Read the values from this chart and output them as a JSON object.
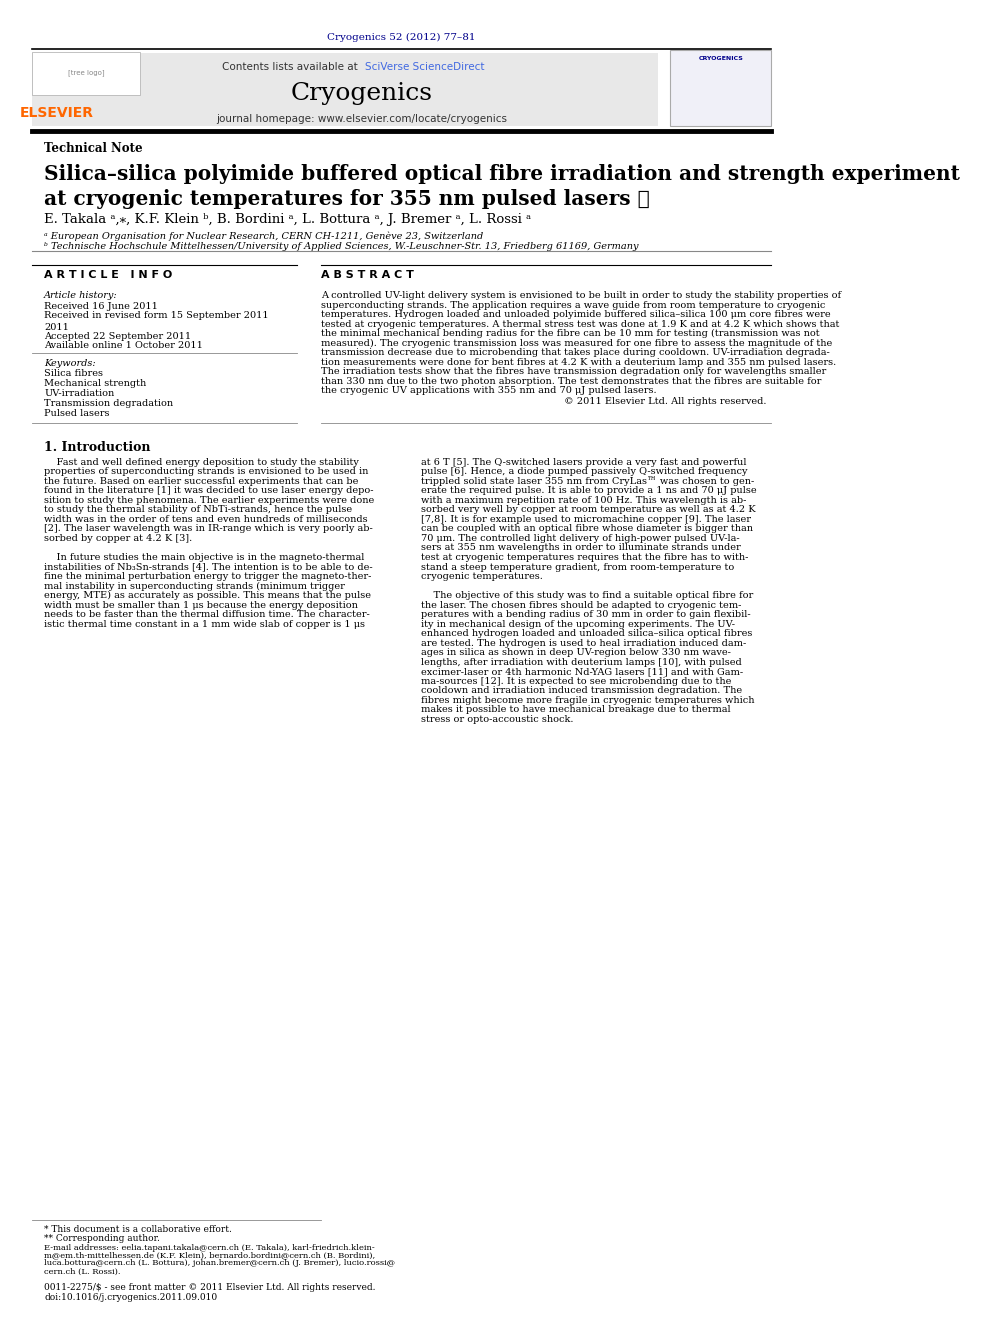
{
  "page_width": 9.92,
  "page_height": 13.23,
  "bg_color": "#ffffff",
  "journal_ref": "Cryogenics 52 (2012) 77–81",
  "journal_ref_color": "#00008B",
  "header_bg": "#e8e8e8",
  "contents_text": "Contents lists available at ",
  "sciverse_text": "SciVerse ScienceDirect",
  "sciverse_color": "#4169e1",
  "journal_name": "Cryogenics",
  "journal_homepage": "journal homepage: www.elsevier.com/locate/cryogenics",
  "article_type": "Technical Note",
  "paper_title_line1": "Silica–silica polyimide buffered optical fibre irradiation and strength experiment",
  "paper_title_line2": "at cryogenic temperatures for 355 nm pulsed lasers ★",
  "authors_full": "E. Takala ᵃ,⁎, K.F. Klein ᵇ, B. Bordini ᵃ, L. Bottura ᵃ, J. Bremer ᵃ, L. Rossi ᵃ",
  "affil_a": "ᵃ European Organisation for Nuclear Research, CERN CH-1211, Genève 23, Switzerland",
  "affil_b": "ᵇ Technische Hochschule Mittelhessen/University of Applied Sciences, W.-Leuschner-Str. 13, Friedberg 61169, Germany",
  "article_info_header": "A R T I C L E   I N F O",
  "abstract_header": "A B S T R A C T",
  "article_history_label": "Article history:",
  "received": "Received 16 June 2011",
  "revised": "Received in revised form 15 September 2011",
  "revised2": "2011",
  "accepted": "Accepted 22 September 2011",
  "available": "Available online 1 October 2011",
  "keywords_label": "Keywords:",
  "keywords": [
    "Silica fibres",
    "Mechanical strength",
    "UV-irradiation",
    "Transmission degradation",
    "Pulsed lasers"
  ],
  "copyright": "© 2011 Elsevier Ltd. All rights reserved.",
  "section1_title": "1. Introduction",
  "issn_line": "0011-2275/$ - see front matter © 2011 Elsevier Ltd. All rights reserved.",
  "doi_line": "doi:10.1016/j.cryogenics.2011.09.010",
  "elsevier_orange": "#FF6600",
  "link_blue": "#4169e1",
  "abstract_lines": [
    "A controlled UV-light delivery system is envisioned to be built in order to study the stability properties of",
    "superconducting strands. The application requires a wave guide from room temperature to cryogenic",
    "temperatures. Hydrogen loaded and unloaded polyimide buffered silica–silica 100 μm core fibres were",
    "tested at cryogenic temperatures. A thermal stress test was done at 1.9 K and at 4.2 K which shows that",
    "the minimal mechanical bending radius for the fibre can be 10 mm for testing (transmission was not",
    "measured). The cryogenic transmission loss was measured for one fibre to assess the magnitude of the",
    "transmission decrease due to microbending that takes place during cooldown. UV-irradiation degrada-",
    "tion measurements were done for bent fibres at 4.2 K with a deuterium lamp and 355 nm pulsed lasers.",
    "The irradiation tests show that the fibres have transmission degradation only for wavelengths smaller",
    "than 330 nm due to the two photon absorption. The test demonstrates that the fibres are suitable for",
    "the cryogenic UV applications with 355 nm and 70 μJ pulsed lasers."
  ],
  "intro_left_lines": [
    "    Fast and well defined energy deposition to study the stability",
    "properties of superconducting strands is envisioned to be used in",
    "the future. Based on earlier successful experiments that can be",
    "found in the literature [1] it was decided to use laser energy depo-",
    "sition to study the phenomena. The earlier experiments were done",
    "to study the thermal stability of NbTi-strands, hence the pulse",
    "width was in the order of tens and even hundreds of milliseconds",
    "[2]. The laser wavelength was in IR-range which is very poorly ab-",
    "sorbed by copper at 4.2 K [3].",
    "",
    "    In future studies the main objective is in the magneto-thermal",
    "instabilities of Nb₃Sn-strands [4]. The intention is to be able to de-",
    "fine the minimal perturbation energy to trigger the magneto-ther-",
    "mal instability in superconducting strands (minimum trigger",
    "energy, MTE) as accurately as possible. This means that the pulse",
    "width must be smaller than 1 μs because the energy deposition",
    "needs to be faster than the thermal diffusion time. The character-",
    "istic thermal time constant in a 1 mm wide slab of copper is 1 μs"
  ],
  "intro_right_lines": [
    "at 6 T [5]. The Q-switched lasers provide a very fast and powerful",
    "pulse [6]. Hence, a diode pumped passively Q-switched frequency",
    "trippled solid state laser 355 nm from CryLas™ was chosen to gen-",
    "erate the required pulse. It is able to provide a 1 ns and 70 μJ pulse",
    "with a maximum repetition rate of 100 Hz. This wavelength is ab-",
    "sorbed very well by copper at room temperature as well as at 4.2 K",
    "[7,8]. It is for example used to micromachine copper [9]. The laser",
    "can be coupled with an optical fibre whose diameter is bigger than",
    "70 μm. The controlled light delivery of high-power pulsed UV-la-",
    "sers at 355 nm wavelengths in order to illuminate strands under",
    "test at cryogenic temperatures requires that the fibre has to with-",
    "stand a steep temperature gradient, from room-temperature to",
    "cryogenic temperatures.",
    "",
    "    The objective of this study was to find a suitable optical fibre for",
    "the laser. The chosen fibres should be adapted to cryogenic tem-",
    "peratures with a bending radius of 30 mm in order to gain flexibil-",
    "ity in mechanical design of the upcoming experiments. The UV-",
    "enhanced hydrogen loaded and unloaded silica–silica optical fibres",
    "are tested. The hydrogen is used to heal irradiation induced dam-",
    "ages in silica as shown in deep UV-region below 330 nm wave-",
    "lengths, after irradiation with deuterium lamps [10], with pulsed",
    "excimer-laser or 4th harmonic Nd-YAG lasers [11] and with Gam-",
    "ma-sources [12]. It is expected to see microbending due to the",
    "cooldown and irradiation induced transmission degradation. The",
    "fibres might become more fragile in cryogenic temperatures which",
    "makes it possible to have mechanical breakage due to thermal",
    "stress or opto-accoustic shock."
  ],
  "footnote1": "* This document is a collaborative effort.",
  "footnote2": "** Corresponding author.",
  "email_lines": [
    "E-mail addresses: eelia.tapani.takala@cern.ch (E. Takala), karl-friedrich.klein-",
    "m@em.th-mittelhessen.de (K.F. Klein), bernardo.bordini@cern.ch (B. Bordini),",
    "luca.bottura@cern.ch (L. Bottura), johan.bremer@cern.ch (J. Bremer), lucio.rossi@",
    "cern.ch (L. Rossi)."
  ]
}
